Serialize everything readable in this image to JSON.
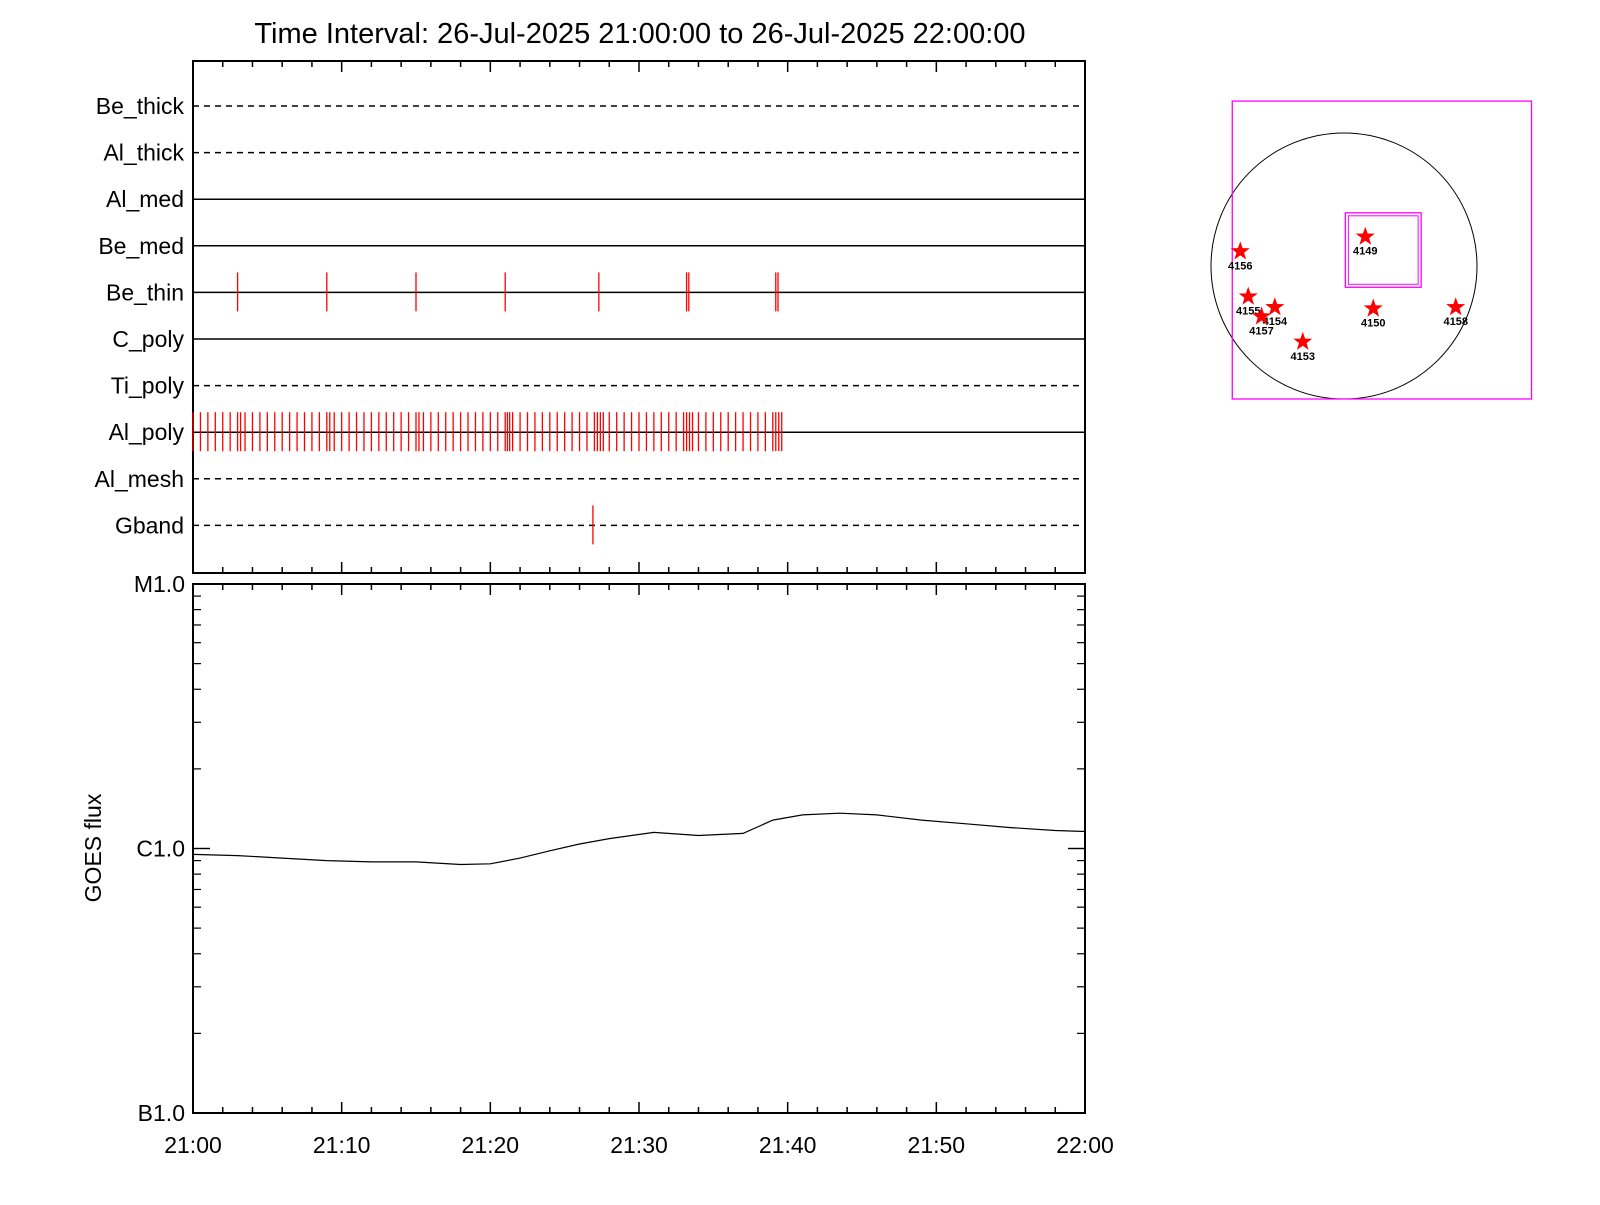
{
  "title": "Time Interval: 26-Jul-2025 21:00:00 to 26-Jul-2025 22:00:00",
  "colors": {
    "axis": "#000000",
    "event": "#ff0000",
    "fov": "#ff00ff",
    "star": "#ff0000"
  },
  "chart_data": [
    {
      "type": "timeline",
      "x_range": [
        "21:00",
        "22:00"
      ],
      "channels": [
        {
          "name": "Be_thick",
          "style": "dashed",
          "events_min": []
        },
        {
          "name": "Al_thick",
          "style": "dashed",
          "events_min": []
        },
        {
          "name": "Al_med",
          "style": "solid",
          "events_min": []
        },
        {
          "name": "Be_med",
          "style": "solid",
          "events_min": []
        },
        {
          "name": "Be_thin",
          "style": "solid",
          "events_min": [
            3.0,
            9.0,
            15.0,
            21.0,
            27.3,
            33.2,
            33.35,
            39.2,
            39.35
          ]
        },
        {
          "name": "C_poly",
          "style": "solid",
          "events_min": []
        },
        {
          "name": "Ti_poly",
          "style": "dashed",
          "events_min": []
        },
        {
          "name": "Al_poly",
          "style": "solid",
          "events_min": [
            0,
            0.5,
            1,
            1.5,
            2,
            2.5,
            3,
            3.2,
            3.5,
            4,
            4.5,
            5,
            5.5,
            6,
            6.5,
            7,
            7.5,
            8,
            8.5,
            9,
            9.2,
            9.5,
            10,
            10.5,
            11,
            11.5,
            12,
            12.5,
            13,
            13.5,
            14,
            14.5,
            15,
            15.2,
            15.5,
            16,
            16.5,
            17,
            17.5,
            18,
            18.5,
            19,
            19.5,
            20,
            20.5,
            21,
            21.15,
            21.3,
            21.5,
            22,
            22.5,
            23,
            23.5,
            24,
            24.5,
            25,
            25.5,
            26,
            26.5,
            27,
            27.2,
            27.4,
            27.6,
            28,
            28.5,
            29,
            29.5,
            30,
            30.5,
            31,
            31.5,
            32,
            32.5,
            33,
            33.2,
            33.4,
            33.6,
            34,
            34.5,
            35,
            35.5,
            36,
            36.5,
            37,
            37.5,
            38,
            38.5,
            39,
            39.2,
            39.4,
            39.6
          ]
        },
        {
          "name": "Al_mesh",
          "style": "dashed",
          "events_min": []
        },
        {
          "name": "Gband",
          "style": "dashed",
          "events_min": [
            26.9
          ]
        }
      ]
    },
    {
      "type": "line",
      "xlabel": "",
      "ylabel": "GOES flux",
      "x_ticks": [
        "21:00",
        "21:10",
        "21:20",
        "21:30",
        "21:40",
        "21:50",
        "22:00"
      ],
      "x_range_min": [
        0,
        60
      ],
      "y_scale": "log",
      "y_ticks": [
        {
          "label": "M1.0",
          "value": 1e-05
        },
        {
          "label": "C1.0",
          "value": 1e-06
        },
        {
          "label": "B1.0",
          "value": 1e-07
        }
      ],
      "ylim": [
        1e-07,
        1e-05
      ],
      "x_min": [
        0,
        3,
        6,
        9,
        12,
        15,
        18,
        20,
        22,
        24,
        26,
        28,
        31,
        34,
        37,
        39,
        41,
        43.5,
        46,
        49,
        52,
        55,
        58,
        60
      ],
      "y": [
        9.5e-07,
        9.4e-07,
        9.2e-07,
        9e-07,
        8.9e-07,
        8.9e-07,
        8.7e-07,
        8.75e-07,
        9.2e-07,
        9.8e-07,
        1.04e-06,
        1.09e-06,
        1.15e-06,
        1.12e-06,
        1.14e-06,
        1.28e-06,
        1.34e-06,
        1.36e-06,
        1.34e-06,
        1.28e-06,
        1.24e-06,
        1.2e-06,
        1.17e-06,
        1.16e-06
      ]
    },
    {
      "type": "scatter",
      "title": "",
      "regions": [
        {
          "label": "4149",
          "x": 0.16,
          "y": 0.22
        },
        {
          "label": "4150",
          "x": 0.22,
          "y": -0.32
        },
        {
          "label": "4153",
          "x": -0.31,
          "y": -0.57
        },
        {
          "label": "4154",
          "x": -0.52,
          "y": -0.31
        },
        {
          "label": "4155",
          "x": -0.72,
          "y": -0.23
        },
        {
          "label": "4156",
          "x": -0.78,
          "y": 0.11
        },
        {
          "label": "4157",
          "x": -0.62,
          "y": -0.38
        },
        {
          "label": "4158",
          "x": 0.84,
          "y": -0.31
        }
      ],
      "fov_outer": {
        "x": [
          -0.84,
          1.41
        ],
        "y": [
          -1.0,
          1.24
        ]
      },
      "fov_inner": {
        "x": [
          0.01,
          0.58
        ],
        "y": [
          -0.16,
          0.4
        ]
      }
    }
  ]
}
